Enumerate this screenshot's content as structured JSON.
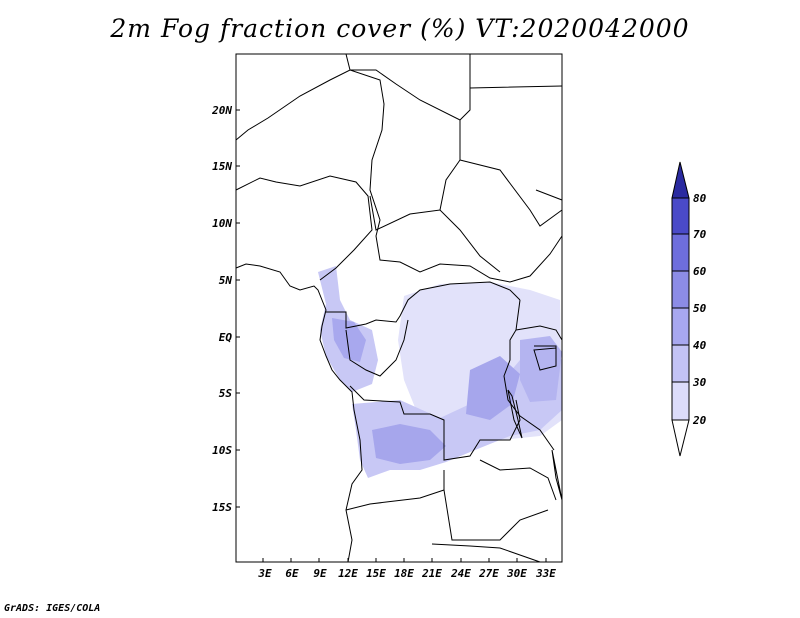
{
  "title": "2m Fog fraction cover (%) VT:2020042000",
  "credit": "GrADS: IGES/COLA",
  "map": {
    "lat_labels": [
      "20N",
      "15N",
      "10N",
      "5N",
      "EQ",
      "5S",
      "10S",
      "15S"
    ],
    "lon_labels": [
      "3E",
      "6E",
      "9E",
      "12E",
      "15E",
      "18E",
      "21E",
      "24E",
      "27E",
      "30E",
      "33E"
    ]
  },
  "colorbar": {
    "labels": [
      "20",
      "30",
      "40",
      "50",
      "60",
      "70",
      "80"
    ],
    "colors": [
      "#ffffff",
      "#dcdcfa",
      "#c3c3f5",
      "#a8a8f0",
      "#8c8ce6",
      "#6e6edc",
      "#4a4ac8",
      "#2a2aa0"
    ]
  }
}
